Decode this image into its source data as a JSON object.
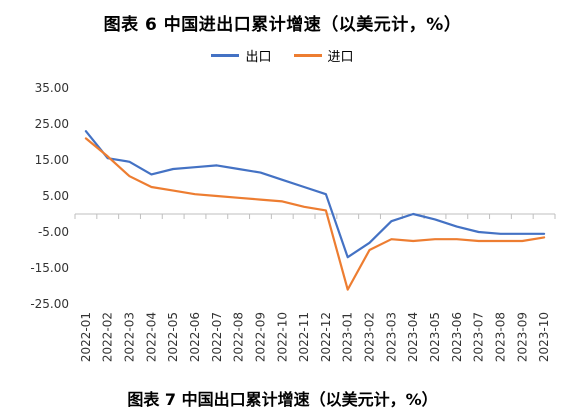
{
  "figure_title": "图表 6   中国进出口累计增速（以美元计，%）",
  "next_caption": "图表 7 中国出口累计增速（以美元计，%）",
  "colors": {
    "export": "#4472C4",
    "import": "#ED7D31",
    "axis": "#BFBFBF"
  },
  "chart_data": {
    "type": "line",
    "ylim": [
      -25,
      35
    ],
    "y_ticks": [
      35,
      25,
      15,
      5,
      -5,
      -15,
      -25
    ],
    "y_tick_labels": [
      "35.00",
      "25.00",
      "15.00",
      "5.00",
      "-5.00",
      "-15.00",
      "-25.00"
    ],
    "legend_placement": "top",
    "categories": [
      "2022-01",
      "2022-02",
      "2022-03",
      "2022-04",
      "2022-05",
      "2022-06",
      "2022-07",
      "2022-08",
      "2022-09",
      "2022-10",
      "2022-11",
      "2022-12",
      "2023-01",
      "2023-02",
      "2023-03",
      "2023-04",
      "2023-05",
      "2023-06",
      "2023-07",
      "2023-08",
      "2023-09",
      "2023-10"
    ],
    "series": [
      {
        "name": "出口",
        "color_key": "export",
        "values": [
          23.0,
          15.5,
          14.5,
          11.0,
          12.5,
          13.0,
          13.5,
          12.5,
          11.5,
          9.5,
          7.5,
          5.5,
          -12.0,
          -8.0,
          -2.0,
          0.0,
          -1.5,
          -3.5,
          -5.0,
          -5.5,
          -5.5,
          -5.5
        ]
      },
      {
        "name": "进口",
        "color_key": "import",
        "values": [
          21.0,
          16.0,
          10.5,
          7.5,
          6.5,
          5.5,
          5.0,
          4.5,
          4.0,
          3.5,
          2.0,
          1.0,
          -21.0,
          -10.0,
          -7.0,
          -7.5,
          -7.0,
          -7.0,
          -7.5,
          -7.5,
          -7.5,
          -6.5
        ]
      }
    ]
  }
}
